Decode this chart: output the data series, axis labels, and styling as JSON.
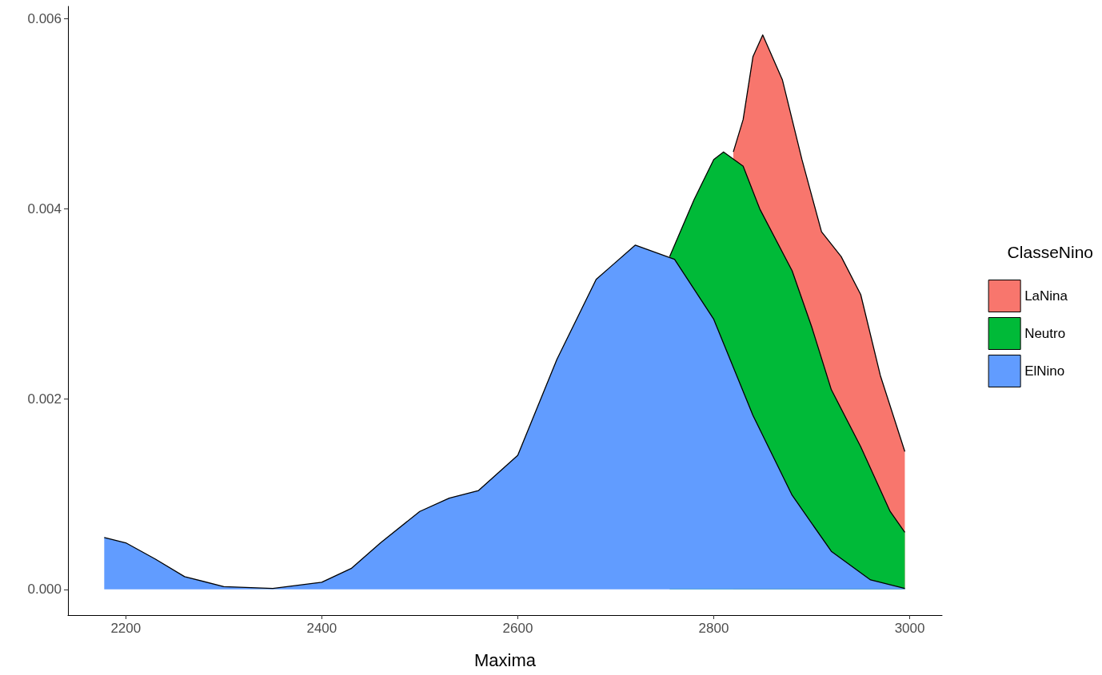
{
  "chart_data": {
    "type": "area",
    "xlabel": "Maxima",
    "legend_title": "ClasseNino",
    "legend": "right",
    "grid": false,
    "xlim": [
      2141,
      3033
    ],
    "xticks": [
      2200,
      2400,
      2600,
      2800,
      3000
    ],
    "ylim": [
      -0.00027,
      0.00613
    ],
    "yticks": [
      {
        "value": 0,
        "label": "0.000"
      },
      {
        "value": 0.002,
        "label": "0.002"
      },
      {
        "value": 0.004,
        "label": "0.004"
      },
      {
        "value": 0.006,
        "label": "0.006"
      }
    ],
    "series": [
      {
        "name": "LaNina",
        "color": "#f8766d",
        "x": [
          2820,
          2830,
          2840,
          2850,
          2870,
          2890,
          2910,
          2930,
          2950,
          2970,
          2995
        ],
        "values": [
          0.0046,
          0.00494,
          0.0056,
          0.00583,
          0.00536,
          0.00452,
          0.00376,
          0.0035,
          0.0031,
          0.00225,
          0.00145
        ]
      },
      {
        "name": "Neutro",
        "color": "#00ba38",
        "x": [
          2755,
          2780,
          2800,
          2810,
          2830,
          2847,
          2880,
          2900,
          2920,
          2950,
          2980,
          2995
        ],
        "values": [
          0.0035,
          0.0041,
          0.00452,
          0.0046,
          0.00445,
          0.004,
          0.00335,
          0.00276,
          0.0021,
          0.0015,
          0.00082,
          0.0006
        ]
      },
      {
        "name": "ElNino",
        "color": "#619cff",
        "x": [
          2178,
          2200,
          2230,
          2260,
          2300,
          2350,
          2400,
          2430,
          2460,
          2500,
          2530,
          2560,
          2600,
          2640,
          2680,
          2720,
          2760,
          2800,
          2840,
          2880,
          2920,
          2960,
          2995
        ],
        "values": [
          0.000546,
          0.00049,
          0.00032,
          0.000134,
          3e-05,
          1e-05,
          7.6e-05,
          0.00022,
          0.00049,
          0.00082,
          0.00096,
          0.00104,
          0.00141,
          0.00242,
          0.00326,
          0.00362,
          0.00347,
          0.00284,
          0.00183,
          0.00099,
          0.0004,
          0.0001,
          1e-05
        ]
      }
    ]
  }
}
